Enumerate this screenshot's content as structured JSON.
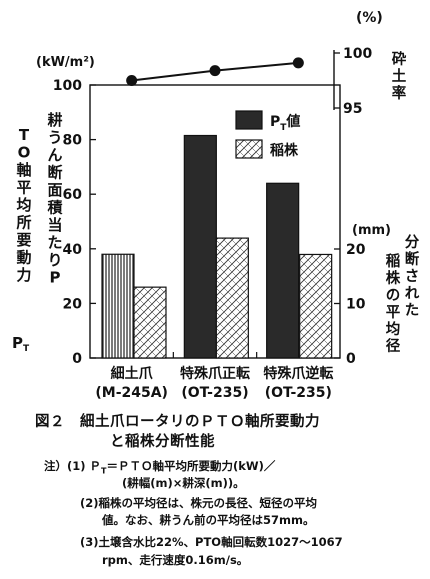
{
  "chart_data": {
    "type": "bar",
    "categories": [
      {
        "line1": "細土爪",
        "line2": "(M-245A)"
      },
      {
        "line1": "特殊爪正転",
        "line2": "(OT-235)"
      },
      {
        "line1": "特殊爪逆転",
        "line2": "(OT-235)"
      }
    ],
    "series": [
      {
        "name": "P_T値",
        "axis": "left",
        "values": [
          38,
          81.5,
          64
        ]
      },
      {
        "name": "稲株",
        "axis": "right",
        "values": [
          13,
          22,
          19
        ]
      },
      {
        "name": "砕土率",
        "axis": "top",
        "values": [
          97.5,
          98.4,
          99.1
        ]
      }
    ],
    "left_axis": {
      "unit": "(kW/m²)",
      "ticks": [
        0,
        20,
        40,
        60,
        80,
        100
      ],
      "range": [
        0,
        100
      ],
      "label": "耕うん断面積当たりPTO軸平均所要動力",
      "symbol": "P",
      "symbol_sub": "T"
    },
    "right_axis": {
      "unit": "(mm)",
      "ticks": [
        0,
        10,
        20
      ],
      "range": [
        0,
        20
      ],
      "label": "分断された稲株の平均径"
    },
    "top_axis": {
      "unit": "(%)",
      "ticks": [
        95,
        100
      ],
      "range": [
        95,
        100
      ],
      "label": "砕土率"
    },
    "legend": [
      {
        "key": "pt",
        "text": "P",
        "sub": "T",
        "suffix": "値"
      },
      {
        "key": "ine",
        "text": "稲株"
      }
    ],
    "colors": {
      "pt": "#2a2a2a",
      "ink": "#111111"
    }
  },
  "caption": {
    "title_line1": "図２　細土爪ロータリのＰＴＯ軸所要動力",
    "title_line2": "と稲株分断性能",
    "notes": [
      "注）(1) Ｐ",
      "T",
      "＝ＰＴＯ軸平均所要動力(kW)／",
      "(耕幅(m)×耕深(m))。",
      "(2)稲株の平均径は、株元の長径、短径の平均",
      "値。なお、耕うん前の平均径は57mm。",
      "(3)土壌含水比22%、PTO軸回転数1027～1067",
      "rpm、走行速度0.16m/s。"
    ]
  }
}
